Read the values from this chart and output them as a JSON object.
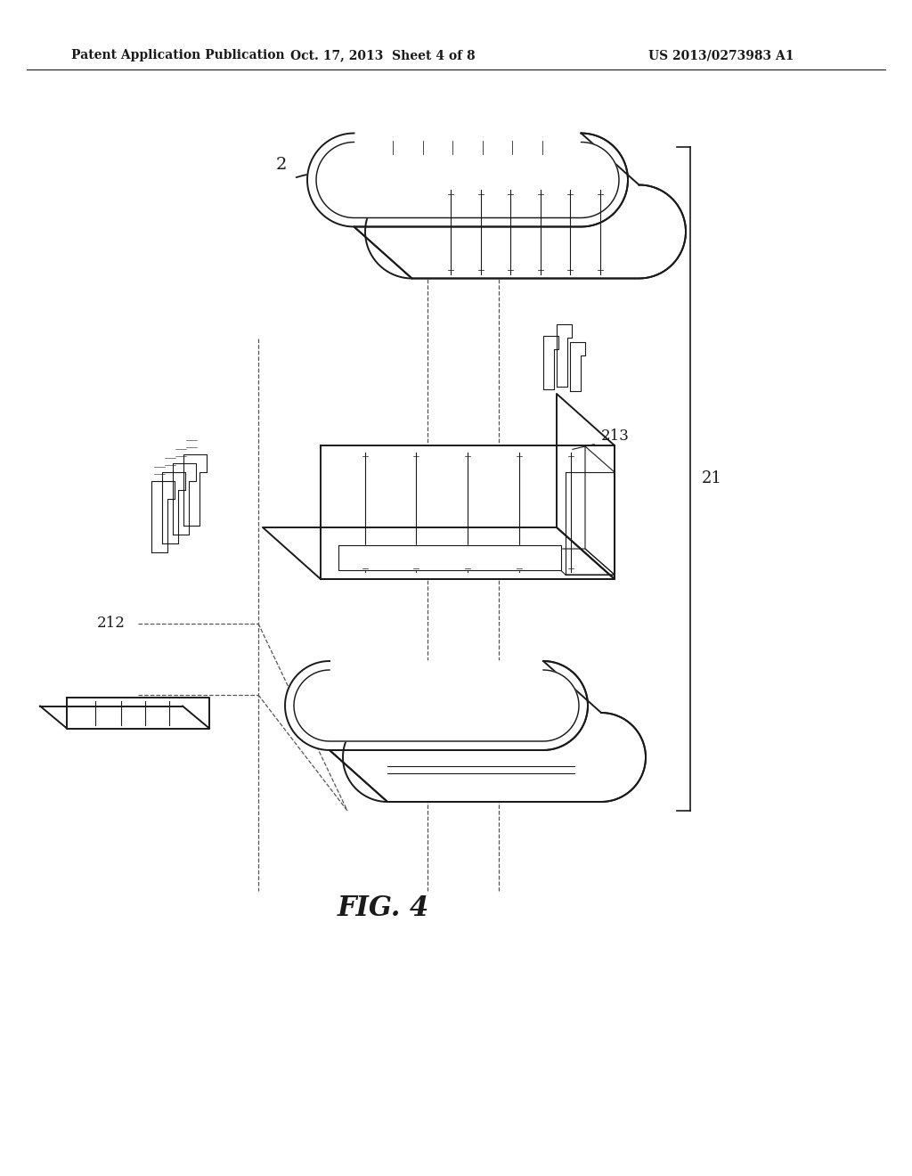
{
  "header_left": "Patent Application Publication",
  "header_center": "Oct. 17, 2013  Sheet 4 of 8",
  "header_right": "US 2013/0273983 A1",
  "bg_color": "#ffffff",
  "lc": "#1a1a1a",
  "fig_caption": "FIG. 4",
  "label_2": "2",
  "label_212": "212",
  "label_213": "213",
  "label_21": "21"
}
